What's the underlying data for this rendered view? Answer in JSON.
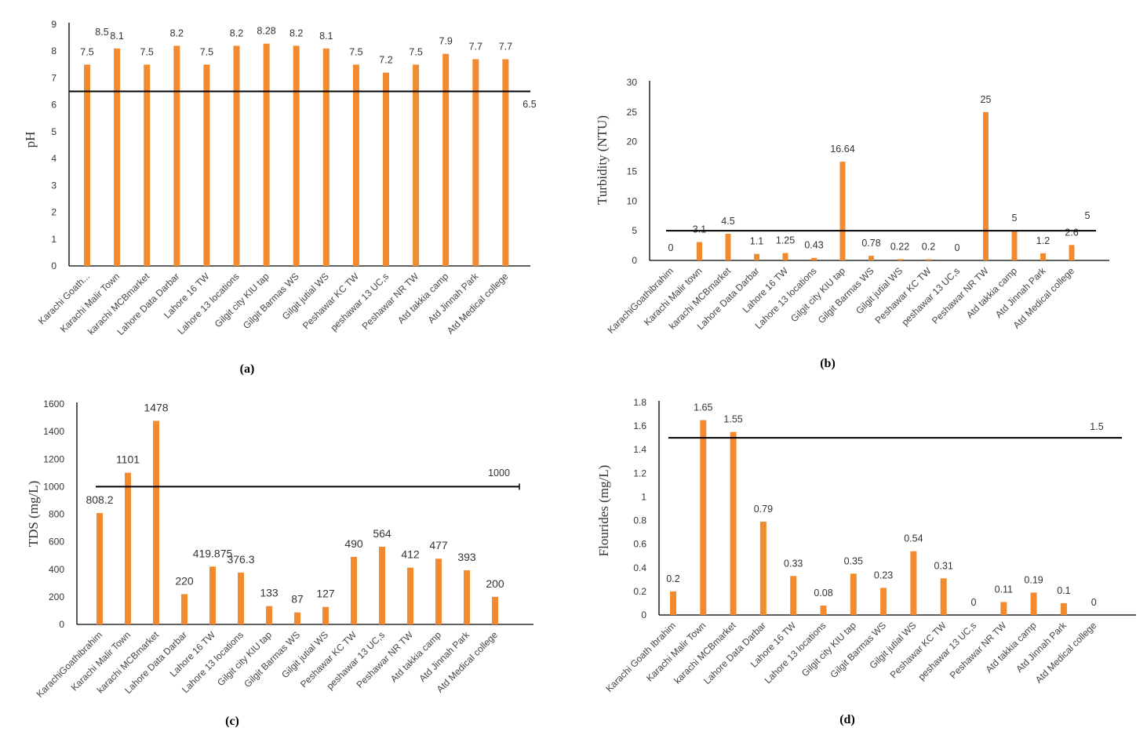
{
  "colors": {
    "bar": "#F28A30",
    "axis": "#000000",
    "threshold": "#000000"
  },
  "chart_data": [
    {
      "id": "a",
      "type": "bar",
      "panel_label": "(a)",
      "ylabel": "pH",
      "ylim": [
        0,
        9
      ],
      "yticks": [
        "0",
        "1",
        "2",
        "3",
        "4",
        "5",
        "6",
        "7",
        "8",
        "9"
      ],
      "categories": [
        "Karachi Goath...",
        "Karachi Malir Town",
        "karachi MCBmarket",
        "Lahore Data Darbar",
        "Lahore 16 TW",
        "Lahore 13 locations",
        "Gilgit city KIU tap",
        "Gilgit Barmas WS",
        "Gilgit jutial WS",
        "Peshawar KC TW",
        "peshawar 13 UC,s",
        "Peshawar NR TW",
        "Atd takkia camp",
        "Atd Jinnah Park",
        "Atd Medical college"
      ],
      "values": [
        7.5,
        8.1,
        7.5,
        8.2,
        7.5,
        8.2,
        8.28,
        8.2,
        8.1,
        7.5,
        7.2,
        7.5,
        7.9,
        7.7,
        7.7
      ],
      "value_labels": [
        "7.5",
        "8.1",
        "7.5",
        "8.2",
        "7.5",
        "8.2",
        "8.28",
        "8.2",
        "8.1",
        "7.5",
        "7.2",
        "7.5",
        "7.9",
        "7.7",
        "7.7"
      ],
      "extra_labels": [
        {
          "text": "8.5",
          "near_category": 0,
          "value": 8.5
        }
      ],
      "threshold": {
        "value": 6.5,
        "label": "6.5"
      }
    },
    {
      "id": "b",
      "type": "bar",
      "panel_label": "(b)",
      "ylabel": "Turbidity  (NTU)",
      "ylim": [
        0,
        30
      ],
      "yticks": [
        "0",
        "5",
        "10",
        "15",
        "20",
        "25",
        "30"
      ],
      "categories": [
        "KarachiGoathibrahim",
        "Karachi Malir town",
        "karachi MCBmarket",
        "Lahore Data Darbar",
        "Lahore 16 TW",
        "Lahore 13 locations",
        "Gilgit city KIU tap",
        "Gilgit Barmas WS",
        "Gilgit jutial WS",
        "Peshawar KC TW",
        "peshawar 13 UC,s",
        "Peshawar NR TW",
        "Atd takkia camp",
        "Atd Jinnah Park",
        "Atd Medical college"
      ],
      "values": [
        0,
        3.1,
        4.5,
        1.1,
        1.25,
        0.43,
        16.64,
        0.78,
        0.22,
        0.2,
        0,
        25,
        5,
        1.2,
        2.6
      ],
      "value_labels": [
        "0",
        "3.1",
        "4.5",
        "1.1",
        "1.25",
        "0.43",
        "16.64",
        "0.78",
        "0.22",
        "0.2",
        "0",
        "25",
        "5",
        "1.2",
        "2.6"
      ],
      "threshold": {
        "value": 5,
        "label": "5"
      }
    },
    {
      "id": "c",
      "type": "bar",
      "panel_label": "(c)",
      "ylabel": "TDS (mg/L)",
      "ylim": [
        0,
        1600
      ],
      "yticks": [
        "0",
        "200",
        "400",
        "600",
        "800",
        "1000",
        "1200",
        "1400",
        "1600"
      ],
      "categories": [
        "KarachiGoathibrahim",
        "Karachi Malir Town",
        "karachi MCBmarket",
        "Lahore Data Darbar",
        "Lahore 16 TW",
        "Lahore 13 locations",
        "Gilgit city KIU tap",
        "Gilgit Barmas WS",
        "Gilgit jutial WS",
        "Peshawar KC TW",
        "peshawar 13 UC,s",
        "Peshawar NR TW",
        "Atd takkia camp",
        "Atd Jinnah Park",
        "Atd Medical college"
      ],
      "values": [
        808.2,
        1101,
        1478,
        220,
        419.875,
        376.3,
        133,
        87,
        127,
        490,
        564,
        412,
        477,
        393,
        200
      ],
      "value_labels": [
        "808.2",
        "1101",
        "1478",
        "220",
        "419.875",
        "376.3",
        "133",
        "87",
        "127",
        "490",
        "564",
        "412",
        "477",
        "393",
        "200"
      ],
      "threshold": {
        "value": 1000,
        "label": "1000"
      }
    },
    {
      "id": "d",
      "type": "bar",
      "panel_label": "(d)",
      "ylabel": "Flourides  (mg/L)",
      "ylim": [
        0,
        1.8
      ],
      "yticks": [
        "0",
        "0.2",
        "0.4",
        "0.6",
        "0.8",
        "1",
        "1.2",
        "1.4",
        "1.6",
        "1.8"
      ],
      "categories": [
        "Karachi Goath Ibrahim",
        "Karachi Malir Town",
        "karachi MCBmarket",
        "Lahore Data Darbar",
        "Lahore 16 TW",
        "Lahore 13 locations",
        "Gilgit city KIU tap",
        "Gilgit Barmas WS",
        "Gilgit jutial WS",
        "Peshawar KC TW",
        "peshawar 13 UC,s",
        "Peshawar NR TW",
        "Atd takkia camp",
        "Atd Jinnah Park",
        "Atd Medical college"
      ],
      "values": [
        0.2,
        1.65,
        1.55,
        0.79,
        0.33,
        0.08,
        0.35,
        0.23,
        0.54,
        0.31,
        0,
        0.11,
        0.19,
        0.1,
        0
      ],
      "value_labels": [
        "0.2",
        "1.65",
        "1.55",
        "0.79",
        "0.33",
        "0.08",
        "0.35",
        "0.23",
        "0.54",
        "0.31",
        "0",
        "0.11",
        "0.19",
        "0.1",
        "0"
      ],
      "threshold": {
        "value": 1.5,
        "label": "1.5"
      }
    }
  ]
}
